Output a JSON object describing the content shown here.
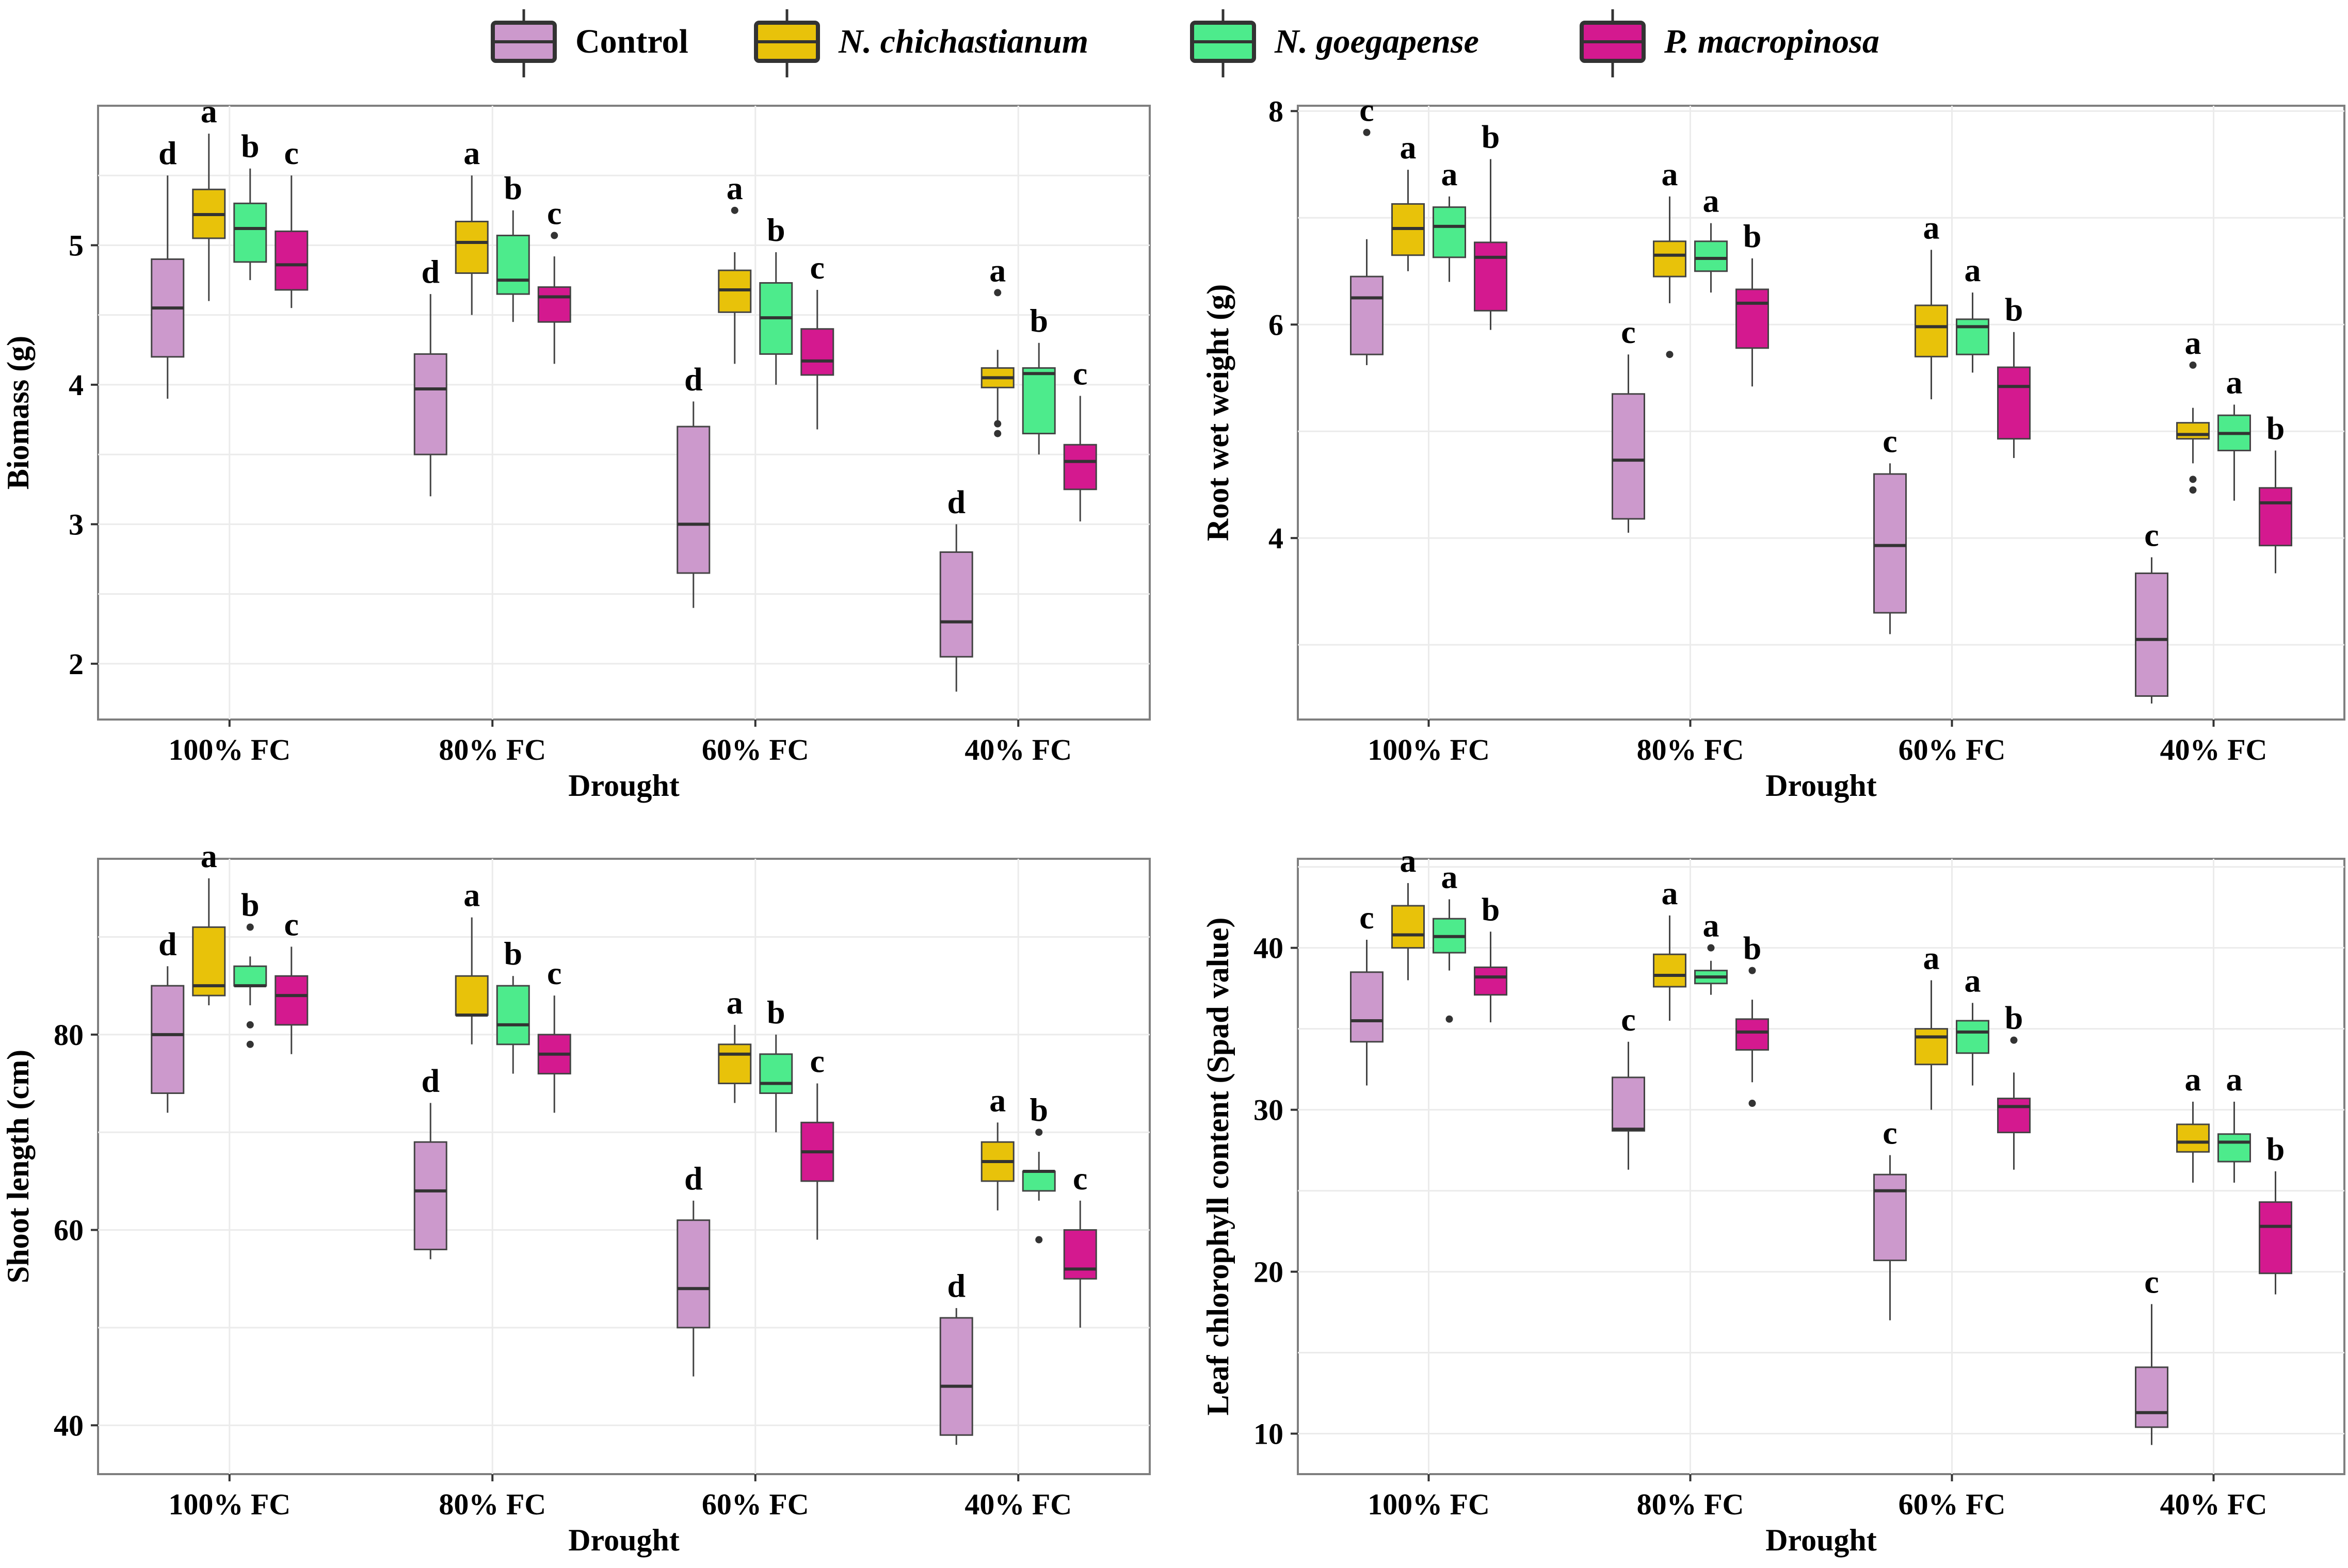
{
  "legend": [
    {
      "name": "Control",
      "color": "#CC99CC",
      "italic": false
    },
    {
      "name": "N. chichastianum",
      "color": "#E8C20A",
      "italic": true
    },
    {
      "name": "N. goegapense",
      "color": "#4DEB8C",
      "italic": true
    },
    {
      "name": "P. macropinosa",
      "color": "#D4198F",
      "italic": true
    }
  ],
  "chart_data": [
    {
      "type": "boxplot",
      "xlabel": "Drought",
      "ylabel": "Biomass (g)",
      "categories": [
        "100% FC",
        "80% FC",
        "60% FC",
        "40% FC"
      ],
      "ylim": [
        1.6,
        6.0
      ],
      "yticks": [
        2,
        3,
        4,
        5
      ],
      "ytick_labels": [
        "2",
        "3",
        "4",
        "5"
      ],
      "series": [
        {
          "name": "Control",
          "boxes": [
            {
              "min": 3.9,
              "q1": 4.2,
              "median": 4.55,
              "q3": 4.9,
              "max": 5.5,
              "outliers": [],
              "letter": "d"
            },
            {
              "min": 3.2,
              "q1": 3.5,
              "median": 3.97,
              "q3": 4.22,
              "max": 4.65,
              "outliers": [],
              "letter": "d"
            },
            {
              "min": 2.4,
              "q1": 2.65,
              "median": 3.0,
              "q3": 3.7,
              "max": 3.88,
              "outliers": [],
              "letter": "d"
            },
            {
              "min": 1.8,
              "q1": 2.05,
              "median": 2.3,
              "q3": 2.8,
              "max": 3.0,
              "outliers": [],
              "letter": "d"
            }
          ]
        },
        {
          "name": "N. chichastianum",
          "boxes": [
            {
              "min": 4.6,
              "q1": 5.05,
              "median": 5.22,
              "q3": 5.4,
              "max": 5.8,
              "outliers": [],
              "letter": "a"
            },
            {
              "min": 4.5,
              "q1": 4.8,
              "median": 5.02,
              "q3": 5.17,
              "max": 5.5,
              "outliers": [],
              "letter": "a"
            },
            {
              "min": 4.15,
              "q1": 4.52,
              "median": 4.68,
              "q3": 4.82,
              "max": 4.95,
              "outliers": [
                5.25
              ],
              "letter": "a"
            },
            {
              "min": 3.7,
              "q1": 3.98,
              "median": 4.05,
              "q3": 4.12,
              "max": 4.25,
              "outliers": [
                4.66,
                3.72,
                3.65
              ],
              "letter": "a"
            }
          ]
        },
        {
          "name": "N. goegapense",
          "boxes": [
            {
              "min": 4.75,
              "q1": 4.88,
              "median": 5.12,
              "q3": 5.3,
              "max": 5.55,
              "outliers": [],
              "letter": "b"
            },
            {
              "min": 4.45,
              "q1": 4.65,
              "median": 4.75,
              "q3": 5.07,
              "max": 5.25,
              "outliers": [],
              "letter": "b"
            },
            {
              "min": 4.0,
              "q1": 4.22,
              "median": 4.48,
              "q3": 4.73,
              "max": 4.95,
              "outliers": [],
              "letter": "b"
            },
            {
              "min": 3.5,
              "q1": 3.65,
              "median": 4.08,
              "q3": 4.12,
              "max": 4.3,
              "outliers": [],
              "letter": "b"
            }
          ]
        },
        {
          "name": "P. macropinosa",
          "boxes": [
            {
              "min": 4.55,
              "q1": 4.68,
              "median": 4.86,
              "q3": 5.1,
              "max": 5.5,
              "outliers": [],
              "letter": "c"
            },
            {
              "min": 4.15,
              "q1": 4.45,
              "median": 4.63,
              "q3": 4.7,
              "max": 4.92,
              "outliers": [
                5.07
              ],
              "letter": "c"
            },
            {
              "min": 3.68,
              "q1": 4.07,
              "median": 4.17,
              "q3": 4.4,
              "max": 4.68,
              "outliers": [],
              "letter": "c"
            },
            {
              "min": 3.02,
              "q1": 3.25,
              "median": 3.45,
              "q3": 3.57,
              "max": 3.92,
              "outliers": [],
              "letter": "c"
            }
          ]
        }
      ]
    },
    {
      "type": "boxplot",
      "xlabel": "Drought",
      "ylabel": "Root wet weight (g)",
      "categories": [
        "100% FC",
        "80% FC",
        "60% FC",
        "40% FC"
      ],
      "ylim": [
        2.3,
        8.05
      ],
      "yticks": [
        4,
        6,
        8
      ],
      "ytick_labels": [
        "4",
        "6",
        "8"
      ],
      "series": [
        {
          "name": "Control",
          "boxes": [
            {
              "min": 5.62,
              "q1": 5.72,
              "median": 6.25,
              "q3": 6.45,
              "max": 6.8,
              "outliers": [
                7.8
              ],
              "letter": "c"
            },
            {
              "min": 4.05,
              "q1": 4.18,
              "median": 4.73,
              "q3": 5.35,
              "max": 5.72,
              "outliers": [],
              "letter": "c"
            },
            {
              "min": 3.1,
              "q1": 3.3,
              "median": 3.93,
              "q3": 4.6,
              "max": 4.7,
              "outliers": [],
              "letter": "c"
            },
            {
              "min": 2.45,
              "q1": 2.52,
              "median": 3.05,
              "q3": 3.67,
              "max": 3.82,
              "outliers": [],
              "letter": "c"
            }
          ]
        },
        {
          "name": "N. chichastianum",
          "boxes": [
            {
              "min": 6.5,
              "q1": 6.65,
              "median": 6.9,
              "q3": 7.13,
              "max": 7.45,
              "outliers": [],
              "letter": "a"
            },
            {
              "min": 6.2,
              "q1": 6.45,
              "median": 6.65,
              "q3": 6.78,
              "max": 7.2,
              "outliers": [
                5.72
              ],
              "letter": "a"
            },
            {
              "min": 5.3,
              "q1": 5.7,
              "median": 5.98,
              "q3": 6.18,
              "max": 6.7,
              "outliers": [],
              "letter": "a"
            },
            {
              "min": 4.7,
              "q1": 4.93,
              "median": 4.97,
              "q3": 5.08,
              "max": 5.22,
              "outliers": [
                5.62,
                4.55,
                4.45
              ],
              "letter": "a"
            }
          ]
        },
        {
          "name": "N. goegapense",
          "boxes": [
            {
              "min": 6.4,
              "q1": 6.63,
              "median": 6.92,
              "q3": 7.1,
              "max": 7.2,
              "outliers": [],
              "letter": "a"
            },
            {
              "min": 6.3,
              "q1": 6.5,
              "median": 6.62,
              "q3": 6.78,
              "max": 6.95,
              "outliers": [],
              "letter": "a"
            },
            {
              "min": 5.55,
              "q1": 5.72,
              "median": 5.98,
              "q3": 6.05,
              "max": 6.3,
              "outliers": [],
              "letter": "a"
            },
            {
              "min": 4.35,
              "q1": 4.82,
              "median": 4.98,
              "q3": 5.15,
              "max": 5.25,
              "outliers": [],
              "letter": "a"
            }
          ]
        },
        {
          "name": "P. macropinosa",
          "boxes": [
            {
              "min": 5.95,
              "q1": 6.13,
              "median": 6.63,
              "q3": 6.77,
              "max": 7.55,
              "outliers": [],
              "letter": "b"
            },
            {
              "min": 5.42,
              "q1": 5.78,
              "median": 6.2,
              "q3": 6.33,
              "max": 6.62,
              "outliers": [],
              "letter": "b"
            },
            {
              "min": 4.75,
              "q1": 4.93,
              "median": 5.42,
              "q3": 5.6,
              "max": 5.93,
              "outliers": [],
              "letter": "b"
            },
            {
              "min": 3.67,
              "q1": 3.93,
              "median": 4.33,
              "q3": 4.47,
              "max": 4.82,
              "outliers": [],
              "letter": "b"
            }
          ]
        }
      ]
    },
    {
      "type": "boxplot",
      "xlabel": "Drought",
      "ylabel": "Shoot length (cm)",
      "categories": [
        "100% FC",
        "80% FC",
        "60% FC",
        "40% FC"
      ],
      "ylim": [
        35,
        98
      ],
      "yticks": [
        40,
        60,
        80
      ],
      "ytick_labels": [
        "40",
        "60",
        "80"
      ],
      "series": [
        {
          "name": "Control",
          "boxes": [
            {
              "min": 72,
              "q1": 74,
              "median": 80,
              "q3": 85,
              "max": 87,
              "outliers": [],
              "letter": "d"
            },
            {
              "min": 57,
              "q1": 58,
              "median": 64,
              "q3": 69,
              "max": 73,
              "outliers": [],
              "letter": "d"
            },
            {
              "min": 45,
              "q1": 50,
              "median": 54,
              "q3": 61,
              "max": 63,
              "outliers": [],
              "letter": "d"
            },
            {
              "min": 38,
              "q1": 39,
              "median": 44,
              "q3": 51,
              "max": 52,
              "outliers": [],
              "letter": "d"
            }
          ]
        },
        {
          "name": "N. chichastianum",
          "boxes": [
            {
              "min": 83,
              "q1": 84,
              "median": 85,
              "q3": 91,
              "max": 96,
              "outliers": [],
              "letter": "a"
            },
            {
              "min": 79,
              "q1": 82,
              "median": 82,
              "q3": 86,
              "max": 92,
              "outliers": [],
              "letter": "a"
            },
            {
              "min": 73,
              "q1": 75,
              "median": 78,
              "q3": 79,
              "max": 81,
              "outliers": [],
              "letter": "a"
            },
            {
              "min": 62,
              "q1": 65,
              "median": 67,
              "q3": 69,
              "max": 71,
              "outliers": [],
              "letter": "a"
            }
          ]
        },
        {
          "name": "N. goegapense",
          "boxes": [
            {
              "min": 83,
              "q1": 85,
              "median": 85,
              "q3": 87,
              "max": 88,
              "outliers": [
                91,
                81,
                79
              ],
              "letter": "b"
            },
            {
              "min": 76,
              "q1": 79,
              "median": 81,
              "q3": 85,
              "max": 86,
              "outliers": [],
              "letter": "b"
            },
            {
              "min": 70,
              "q1": 74,
              "median": 75,
              "q3": 78,
              "max": 80,
              "outliers": [],
              "letter": "b"
            },
            {
              "min": 63,
              "q1": 64,
              "median": 66,
              "q3": 66,
              "max": 68,
              "outliers": [
                70,
                59
              ],
              "letter": "b"
            }
          ]
        },
        {
          "name": "P. macropinosa",
          "boxes": [
            {
              "min": 78,
              "q1": 81,
              "median": 84,
              "q3": 86,
              "max": 89,
              "outliers": [],
              "letter": "c"
            },
            {
              "min": 72,
              "q1": 76,
              "median": 78,
              "q3": 80,
              "max": 84,
              "outliers": [],
              "letter": "c"
            },
            {
              "min": 59,
              "q1": 65,
              "median": 68,
              "q3": 71,
              "max": 75,
              "outliers": [],
              "letter": "c"
            },
            {
              "min": 50,
              "q1": 55,
              "median": 56,
              "q3": 60,
              "max": 63,
              "outliers": [],
              "letter": "c"
            }
          ]
        }
      ]
    },
    {
      "type": "boxplot",
      "xlabel": "Drought",
      "ylabel": "Leaf chlorophyll content (Spad value)",
      "categories": [
        "100% FC",
        "80% FC",
        "60% FC",
        "40% FC"
      ],
      "ylim": [
        7.5,
        45.5
      ],
      "yticks": [
        10,
        20,
        30,
        40
      ],
      "ytick_labels": [
        "10",
        "20",
        "30",
        "40"
      ],
      "series": [
        {
          "name": "Control",
          "boxes": [
            {
              "min": 31.5,
              "q1": 34.2,
              "median": 35.5,
              "q3": 38.5,
              "max": 40.5,
              "outliers": [],
              "letter": "c"
            },
            {
              "min": 26.3,
              "q1": 28.7,
              "median": 28.8,
              "q3": 32.0,
              "max": 34.2,
              "outliers": [],
              "letter": "c"
            },
            {
              "min": 17.0,
              "q1": 20.7,
              "median": 25.0,
              "q3": 26.0,
              "max": 27.2,
              "outliers": [],
              "letter": "c"
            },
            {
              "min": 9.3,
              "q1": 10.4,
              "median": 11.3,
              "q3": 14.1,
              "max": 18.0,
              "outliers": [],
              "letter": "c"
            }
          ]
        },
        {
          "name": "N. chichastianum",
          "boxes": [
            {
              "min": 38.0,
              "q1": 40.0,
              "median": 40.8,
              "q3": 42.6,
              "max": 44.0,
              "outliers": [],
              "letter": "a"
            },
            {
              "min": 35.5,
              "q1": 37.6,
              "median": 38.3,
              "q3": 39.6,
              "max": 42.0,
              "outliers": [],
              "letter": "a"
            },
            {
              "min": 30.0,
              "q1": 32.8,
              "median": 34.5,
              "q3": 35.0,
              "max": 38.0,
              "outliers": [],
              "letter": "a"
            },
            {
              "min": 25.5,
              "q1": 27.4,
              "median": 28.0,
              "q3": 29.1,
              "max": 30.5,
              "outliers": [],
              "letter": "a"
            }
          ]
        },
        {
          "name": "N. goegapense",
          "boxes": [
            {
              "min": 38.6,
              "q1": 39.7,
              "median": 40.7,
              "q3": 41.8,
              "max": 43.0,
              "outliers": [
                35.6
              ],
              "letter": "a"
            },
            {
              "min": 37.1,
              "q1": 37.8,
              "median": 38.2,
              "q3": 38.6,
              "max": 39.2,
              "outliers": [
                40.0
              ],
              "letter": "a"
            },
            {
              "min": 31.5,
              "q1": 33.5,
              "median": 34.8,
              "q3": 35.5,
              "max": 36.6,
              "outliers": [],
              "letter": "a"
            },
            {
              "min": 25.5,
              "q1": 26.8,
              "median": 28.0,
              "q3": 28.5,
              "max": 30.5,
              "outliers": [],
              "letter": "a"
            }
          ]
        },
        {
          "name": "P. macropinosa",
          "boxes": [
            {
              "min": 35.4,
              "q1": 37.1,
              "median": 38.2,
              "q3": 38.8,
              "max": 41.0,
              "outliers": [],
              "letter": "b"
            },
            {
              "min": 31.7,
              "q1": 33.7,
              "median": 34.8,
              "q3": 35.6,
              "max": 36.8,
              "outliers": [
                30.4,
                38.6
              ],
              "letter": "b"
            },
            {
              "min": 26.3,
              "q1": 28.6,
              "median": 30.2,
              "q3": 30.7,
              "max": 32.3,
              "outliers": [
                34.3
              ],
              "letter": "b"
            },
            {
              "min": 18.6,
              "q1": 19.9,
              "median": 22.8,
              "q3": 24.3,
              "max": 26.2,
              "outliers": [],
              "letter": "b"
            }
          ]
        }
      ]
    }
  ]
}
